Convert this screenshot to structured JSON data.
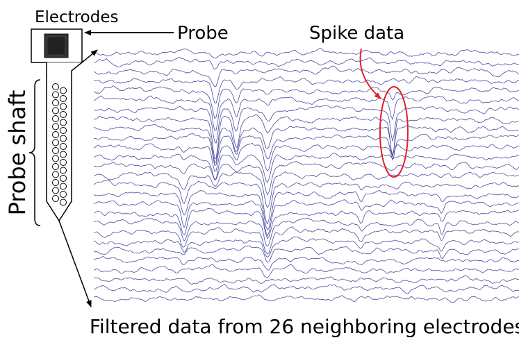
{
  "labels": {
    "electrodes": "Electrodes",
    "probe": "Probe",
    "spike": "Spike data",
    "shaft": "Probe shaft",
    "caption": "Filtered data from 26 neighboring electrodes"
  }
}
